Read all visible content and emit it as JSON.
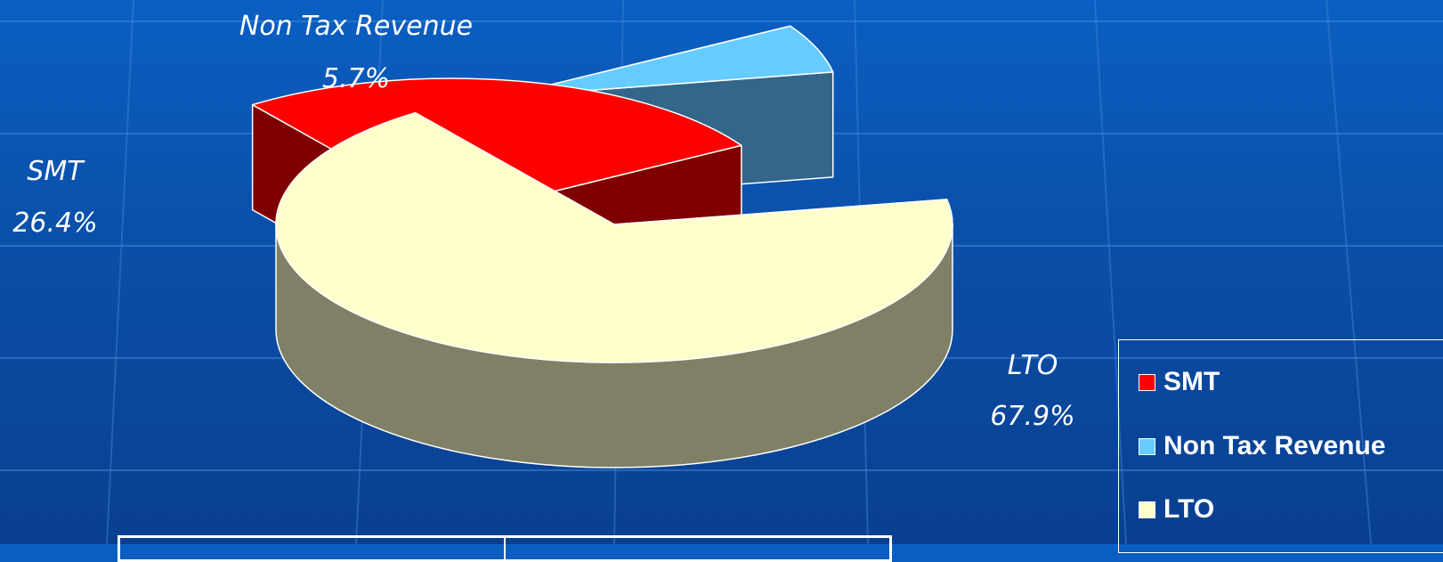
{
  "chart_data": {
    "type": "pie",
    "three_d": true,
    "exploded": true,
    "slices": [
      {
        "name": "SMT",
        "value": 26.4,
        "value_label": "26.4%",
        "color": "#ff0000",
        "side_color": "#7f0000"
      },
      {
        "name": "Non Tax Revenue",
        "value": 5.7,
        "value_label": "5.7%",
        "color": "#66ccff",
        "side_color": "#336688"
      },
      {
        "name": "LTO",
        "value": 67.9,
        "value_label": "67.9%",
        "color": "#ffffcc",
        "side_color": "#808066"
      }
    ],
    "legend": {
      "placement": "right",
      "entries": [
        "SMT",
        "Non Tax Revenue",
        "LTO"
      ]
    }
  },
  "background": {
    "color_top": "#0a5fc2",
    "color_bottom": "#0a3f8f",
    "grid_color": "#3f86d6"
  }
}
